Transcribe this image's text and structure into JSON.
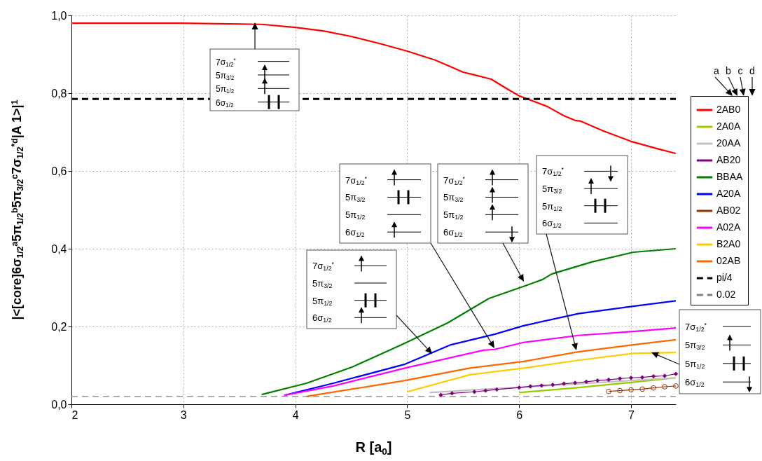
{
  "chart_data": {
    "type": "line",
    "xlabel": "R [a$_{0}$]",
    "ylabel": "|<[core]6σ$_{1/2}$$^{a}$5π$_{1/2}$$^{b}$5π$_{3/2}$$^{c}$7σ$_{1/2}$$^{*d}$|A 1>|$^{1}$",
    "legend_title": "a b c d",
    "legend": "right",
    "grid": true,
    "xlim": [
      2,
      7.4
    ],
    "xticks": [
      2,
      3,
      4,
      5,
      6,
      7
    ],
    "ylim": [
      0,
      1
    ],
    "yticks": [
      {
        "value": 0,
        "label": "0,0"
      },
      {
        "value": 0.2,
        "label": "0,2"
      },
      {
        "value": 0.4,
        "label": "0,4"
      },
      {
        "value": 0.6,
        "label": "0,6"
      },
      {
        "value": 0.8,
        "label": "0,8"
      },
      {
        "value": 1,
        "label": "1,0"
      }
    ],
    "series": [
      {
        "name": "2AB0",
        "color": "#ff0000",
        "x": [
          2,
          3,
          3.7,
          4,
          4.25,
          4.5,
          4.75,
          5,
          5.25,
          5.5,
          5.6,
          5.75,
          5.9,
          6,
          6.25,
          6.4,
          6.5,
          6.55,
          6.75,
          7,
          7.25,
          7.4
        ],
        "values": [
          0.98,
          0.98,
          0.977,
          0.969,
          0.96,
          0.946,
          0.928,
          0.908,
          0.885,
          0.854,
          0.847,
          0.836,
          0.81,
          0.793,
          0.766,
          0.742,
          0.73,
          0.728,
          0.703,
          0.676,
          0.656,
          0.645
        ]
      },
      {
        "name": "2A0A",
        "color": "#99cc00",
        "x": [
          6,
          6.5,
          7,
          7.4
        ],
        "values": [
          0.03,
          0.042,
          0.056,
          0.068
        ]
      },
      {
        "name": "20AA",
        "color": "#c0c0c0",
        "x": [
          5.2,
          5.6,
          6.04,
          6.5,
          7,
          7.4
        ],
        "values": [
          0.03,
          0.037,
          0.044,
          0.052,
          0.061,
          0.068
        ]
      },
      {
        "name": "AB20",
        "color": "#800080",
        "marker": "diamond",
        "x": [
          5.3,
          5.4,
          5.6,
          5.7,
          5.8,
          6,
          6.1,
          6.2,
          6.3,
          6.4,
          6.5,
          6.6,
          6.7,
          6.8,
          6.9,
          7,
          7.1,
          7.2,
          7.3,
          7.4
        ],
        "values": [
          0.024,
          0.028,
          0.032,
          0.035,
          0.038,
          0.043,
          0.046,
          0.048,
          0.05,
          0.053,
          0.055,
          0.058,
          0.061,
          0.063,
          0.066,
          0.068,
          0.069,
          0.072,
          0.073,
          0.078
        ]
      },
      {
        "name": "BBAA",
        "color": "#008000",
        "x": [
          3.7,
          4.1,
          4.51,
          4.95,
          5.36,
          5.73,
          6.04,
          6.21,
          6.29,
          6.65,
          7.02,
          7.4
        ],
        "values": [
          0.025,
          0.054,
          0.096,
          0.153,
          0.209,
          0.272,
          0.303,
          0.321,
          0.335,
          0.366,
          0.391,
          0.4
        ]
      },
      {
        "name": "A20A",
        "color": "#0000ff",
        "x": [
          3.9,
          4.34,
          4.98,
          5.39,
          5.78,
          6.04,
          6.53,
          7.02,
          7.4
        ],
        "values": [
          0.023,
          0.054,
          0.103,
          0.153,
          0.18,
          0.202,
          0.233,
          0.252,
          0.266
        ]
      },
      {
        "name": "AB02",
        "color": "#993300",
        "marker": "circle",
        "x": [
          6.8,
          6.9,
          7,
          7.1,
          7.2,
          7.3,
          7.4
        ],
        "values": [
          0.033,
          0.035,
          0.037,
          0.039,
          0.042,
          0.045,
          0.047
        ]
      },
      {
        "name": "A02A",
        "color": "#ff00ff",
        "x": [
          3.9,
          4.34,
          4.98,
          5.68,
          5.78,
          6.04,
          6.53,
          7.02,
          7.4
        ],
        "values": [
          0.023,
          0.047,
          0.093,
          0.139,
          0.141,
          0.159,
          0.177,
          0.187,
          0.196
        ]
      },
      {
        "name": "B2A0",
        "color": "#ffcc00",
        "x": [
          5,
          5.56,
          6.04,
          6.53,
          7.02,
          7.4
        ],
        "values": [
          0.032,
          0.076,
          0.093,
          0.113,
          0.131,
          0.133
        ]
      },
      {
        "name": "02AB",
        "color": "#ff6600",
        "x": [
          4.1,
          4.98,
          5.56,
          6.04,
          6.53,
          7.02,
          7.4
        ],
        "values": [
          0.02,
          0.061,
          0.093,
          0.11,
          0.135,
          0.153,
          0.166
        ]
      },
      {
        "name": "pi/4",
        "color": "#000000",
        "line_style": "dashed",
        "x": [
          2,
          7.4
        ],
        "values": [
          0.785,
          0.785
        ]
      },
      {
        "name": "0.02",
        "color": "#808080",
        "line_style": "dashed",
        "x": [
          2,
          7.4
        ],
        "values": [
          0.02,
          0.02
        ]
      }
    ],
    "annotations": [
      "7σ$_{1/2}$$^{*}$",
      "5π$_{3/2}$",
      "5π$_{1/2}$",
      "6σ$_{1/2}$",
      "7σ$_{1/2}$$^{*}$",
      "5π$_{3/2}$",
      "5π$_{1/2}$",
      "6σ$_{1/2}$",
      "7σ$_{1/2}$$^{*}$",
      "5π$_{3/2}$",
      "5π$_{1/2}$",
      "6σ$_{1/2}$",
      "7σ$_{1/2}$$^{*}$",
      "5π$_{3/2}$",
      "5π$_{1/2}$",
      "6σ$_{1/2}$",
      "7σ$_{1/2}$$^{*}$",
      "5π$_{3/2}$",
      "5π$_{1/2}$",
      "6σ$_{1/2}$",
      "7σ$_{1/2}$$^{*}$",
      "5π$_{3/2}$",
      "5π$_{1/2}$",
      "6σ$_{1/2}$"
    ]
  }
}
